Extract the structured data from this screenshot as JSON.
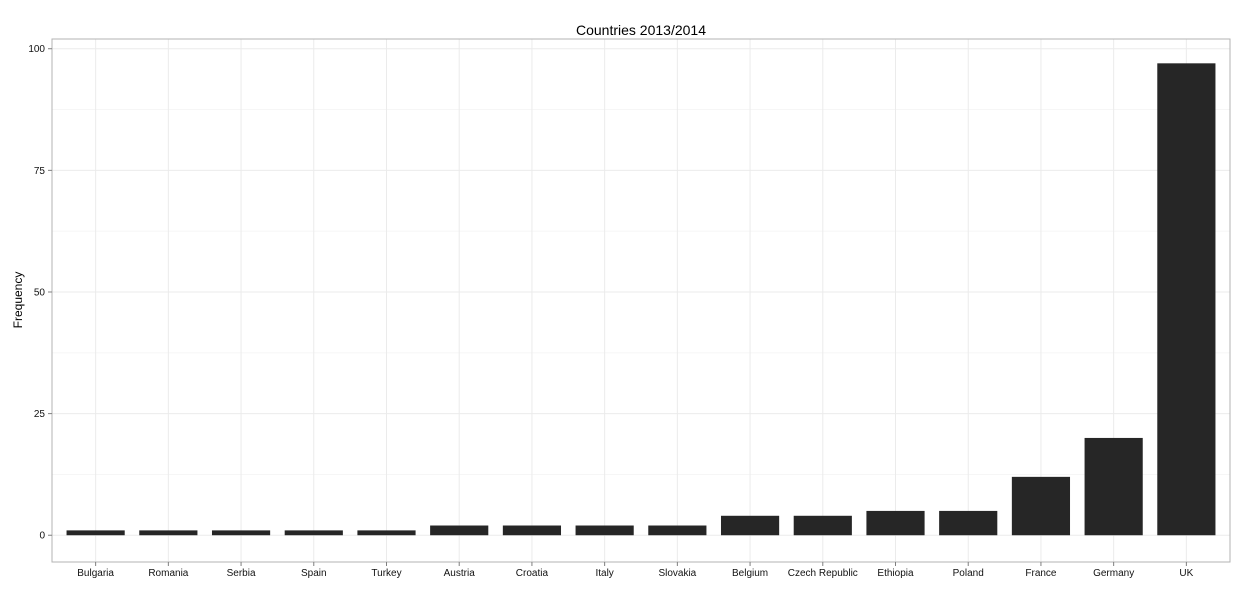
{
  "chart_data": {
    "type": "bar",
    "title": "Countries 2013/2014",
    "xlabel": "",
    "ylabel": "Frequency",
    "categories": [
      "Bulgaria",
      "Romania",
      "Serbia",
      "Spain",
      "Turkey",
      "Austria",
      "Croatia",
      "Italy",
      "Slovakia",
      "Belgium",
      "Czech Republic",
      "Ethiopia",
      "Poland",
      "France",
      "Germany",
      "UK"
    ],
    "values": [
      1,
      1,
      1,
      1,
      1,
      2,
      2,
      2,
      2,
      4,
      4,
      5,
      5,
      12,
      20,
      97
    ],
    "ylim": [
      -5.5,
      102
    ],
    "yticks": [
      0,
      25,
      50,
      75,
      100
    ],
    "grid": true,
    "bar_color": "#262626"
  }
}
